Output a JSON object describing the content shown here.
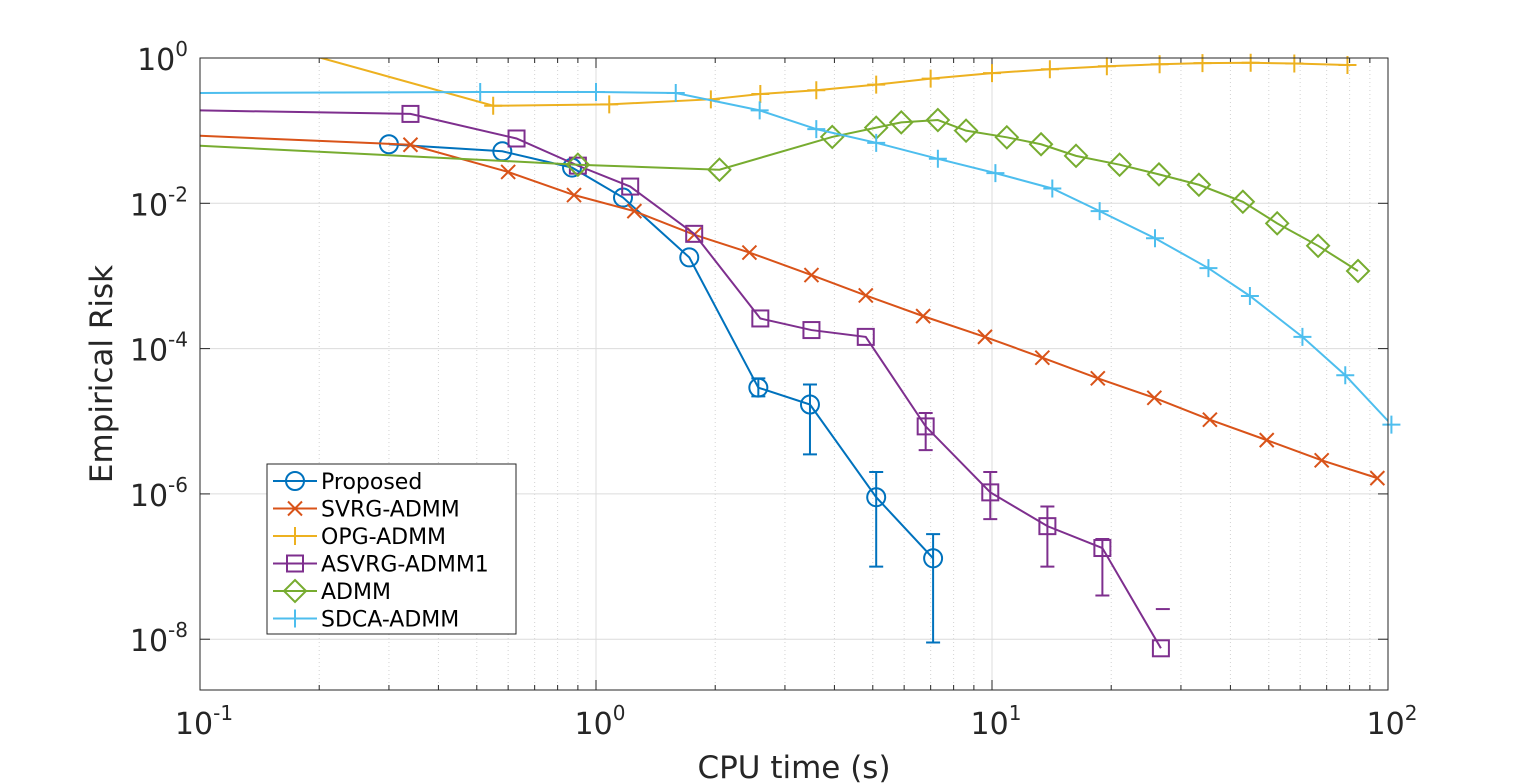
{
  "chart_data": {
    "type": "line",
    "xlabel": "CPU time (s)",
    "ylabel": "Empirical Risk",
    "xscale": "log",
    "yscale": "log",
    "xlim": [
      0.1,
      100
    ],
    "ylim": [
      2e-09,
      1
    ],
    "grid": true,
    "legend_position": "bottom-left",
    "x_ticks": [
      {
        "base": "10",
        "exp": "-1"
      },
      {
        "base": "10",
        "exp": "0"
      },
      {
        "base": "10",
        "exp": "1"
      },
      {
        "base": "10",
        "exp": "2"
      }
    ],
    "y_ticks": [
      {
        "base": "10",
        "exp": "0"
      },
      {
        "base": "10",
        "exp": "-2"
      },
      {
        "base": "10",
        "exp": "-4"
      },
      {
        "base": "10",
        "exp": "-6"
      },
      {
        "base": "10",
        "exp": "-8"
      }
    ],
    "series": [
      {
        "name": "Proposed",
        "color": "#0072bd",
        "marker": "circle",
        "points": [
          [
            0.3,
            0.065
          ],
          [
            0.58,
            0.052
          ],
          [
            0.87,
            0.031
          ],
          [
            1.17,
            0.012
          ],
          [
            1.72,
            0.0018
          ],
          [
            2.57,
            2.9e-05
          ],
          [
            3.47,
            1.7e-05
          ],
          [
            5.1,
            9e-07
          ],
          [
            7.1,
            1.3e-07
          ]
        ],
        "error_bars": [
          [
            2.57,
            2.2e-05,
            3.9e-05
          ],
          [
            3.47,
            3.5e-06,
            3.2e-05
          ],
          [
            5.1,
            1e-07,
            2e-06
          ],
          [
            7.1,
            9e-09,
            2.8e-07
          ]
        ]
      },
      {
        "name": "SVRG-ADMM",
        "color": "#d95319",
        "marker": "x",
        "points": [
          [
            0.1,
            0.085
          ],
          [
            0.34,
            0.064
          ],
          [
            0.6,
            0.027
          ],
          [
            0.88,
            0.013
          ],
          [
            1.25,
            0.0078
          ],
          [
            1.77,
            0.0037
          ],
          [
            2.44,
            0.0021
          ],
          [
            3.5,
            0.00103
          ],
          [
            4.8,
            0.00054
          ],
          [
            6.7,
            0.00028
          ],
          [
            9.6,
            0.000145
          ],
          [
            13.4,
            7.5e-05
          ],
          [
            18.5,
            3.9e-05
          ],
          [
            25.7,
            2.1e-05
          ],
          [
            35.5,
            1.05e-05
          ],
          [
            49.4,
            5.5e-06
          ],
          [
            68,
            2.9e-06
          ],
          [
            94,
            1.65e-06
          ]
        ]
      },
      {
        "name": "OPG-ADMM",
        "color": "#edb120",
        "marker": "plus",
        "points": [
          [
            0.2,
            1.02
          ],
          [
            0.55,
            0.22
          ],
          [
            1.08,
            0.23
          ],
          [
            1.95,
            0.27
          ],
          [
            2.6,
            0.32
          ],
          [
            3.6,
            0.36
          ],
          [
            5.1,
            0.43
          ],
          [
            7,
            0.52
          ],
          [
            10,
            0.62
          ],
          [
            14,
            0.7
          ],
          [
            19.5,
            0.77
          ],
          [
            26.5,
            0.82
          ],
          [
            34,
            0.85
          ],
          [
            45,
            0.86
          ],
          [
            58,
            0.84
          ],
          [
            79,
            0.8
          ]
        ]
      },
      {
        "name": "ASVRG-ADMM1",
        "color": "#7e2f8e",
        "marker": "square",
        "points": [
          [
            0.1,
            0.19
          ],
          [
            0.34,
            0.17
          ],
          [
            0.63,
            0.078
          ],
          [
            0.9,
            0.033
          ],
          [
            1.22,
            0.017
          ],
          [
            1.77,
            0.0038
          ],
          [
            2.6,
            0.00026
          ],
          [
            3.5,
            0.00018
          ],
          [
            4.8,
            0.000145
          ],
          [
            6.8,
            8.5e-06
          ],
          [
            9.9,
            1.05e-06
          ],
          [
            13.8,
            3.6e-07
          ],
          [
            19,
            1.8e-07
          ],
          [
            26.7,
            7.5e-09
          ]
        ],
        "error_bars": [
          [
            6.8,
            4e-06,
            1.3e-05
          ],
          [
            9.9,
            4.5e-07,
            2e-06
          ],
          [
            13.8,
            1e-07,
            6.7e-07
          ],
          [
            19,
            4e-08,
            2.4e-07
          ]
        ]
      },
      {
        "name": "ADMM",
        "color": "#77ac30",
        "marker": "diamond",
        "points": [
          [
            0.1,
            0.062
          ],
          [
            0.9,
            0.034
          ],
          [
            2.05,
            0.029
          ],
          [
            3.95,
            0.082
          ],
          [
            5.1,
            0.11
          ],
          [
            5.9,
            0.13
          ],
          [
            7.3,
            0.14
          ],
          [
            8.6,
            0.1
          ],
          [
            10.9,
            0.081
          ],
          [
            13.3,
            0.065
          ],
          [
            16.3,
            0.045
          ],
          [
            21,
            0.034
          ],
          [
            26.4,
            0.025
          ],
          [
            33.3,
            0.018
          ],
          [
            43,
            0.0105
          ],
          [
            52.5,
            0.0053
          ],
          [
            66.6,
            0.0026
          ],
          [
            84,
            0.00117
          ]
        ]
      },
      {
        "name": "SDCA-ADMM",
        "color": "#4dbeee",
        "marker": "plus",
        "points": [
          [
            0.1,
            0.33
          ],
          [
            0.51,
            0.34
          ],
          [
            1.0,
            0.34
          ],
          [
            1.59,
            0.33
          ],
          [
            2.59,
            0.19
          ],
          [
            3.6,
            0.105
          ],
          [
            5.1,
            0.068
          ],
          [
            7.3,
            0.041
          ],
          [
            10.2,
            0.026
          ],
          [
            14.2,
            0.016
          ],
          [
            18.7,
            0.0078
          ],
          [
            25.8,
            0.0033
          ],
          [
            35.2,
            0.00128
          ],
          [
            44.8,
            0.00053
          ],
          [
            60.8,
            0.000145
          ],
          [
            78,
            4.3e-05
          ],
          [
            102,
            9e-06
          ]
        ]
      }
    ],
    "annotations": [
      {
        "type": "dash",
        "x": 27,
        "y": 2.6e-08,
        "color": "#7e2f8e"
      }
    ]
  }
}
